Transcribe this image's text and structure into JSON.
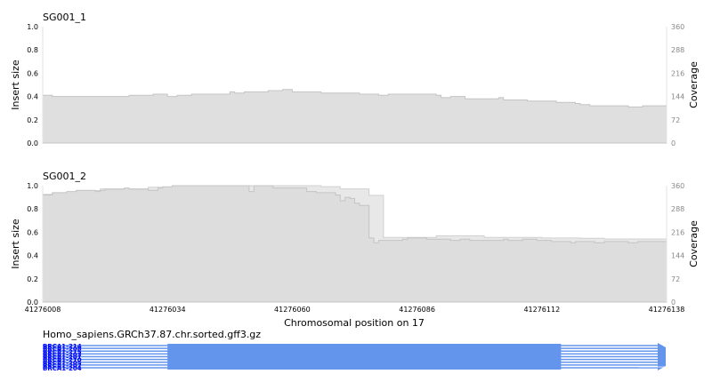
{
  "chart_data": [
    {
      "type": "area",
      "title": "SG001_1",
      "ylabel": "Insert size",
      "ylabel_right": "Coverage",
      "ylim": [
        0,
        1.0
      ],
      "y_ticks": [
        "0.0",
        "0.2",
        "0.4",
        "0.6",
        "0.8",
        "1.0"
      ],
      "y2lim": [
        0,
        360
      ],
      "y2_ticks": [
        "0",
        "72",
        "144",
        "216",
        "288",
        "360"
      ],
      "xlim": [
        41276008,
        41276138
      ],
      "series": [
        {
          "role": "insert-size",
          "x": [
            41276008,
            41276010,
            41276013,
            41276026,
            41276031,
            41276034,
            41276036,
            41276039,
            41276041,
            41276047,
            41276048,
            41276050,
            41276052,
            41276055,
            41276058,
            41276060,
            41276066,
            41276074,
            41276076,
            41276078,
            41276080,
            41276084,
            41276090,
            41276091,
            41276093,
            41276096,
            41276099,
            41276103,
            41276104,
            41276109,
            41276115,
            41276119,
            41276120,
            41276122,
            41276130,
            41276133,
            41276135,
            41276138
          ],
          "y": [
            0.41,
            0.4,
            0.4,
            0.41,
            0.42,
            0.4,
            0.41,
            0.42,
            0.42,
            0.44,
            0.43,
            0.44,
            0.44,
            0.45,
            0.46,
            0.44,
            0.43,
            0.42,
            0.42,
            0.41,
            0.42,
            0.42,
            0.41,
            0.39,
            0.4,
            0.38,
            0.38,
            0.39,
            0.37,
            0.36,
            0.35,
            0.34,
            0.33,
            0.32,
            0.31,
            0.32,
            0.32,
            0.32
          ]
        },
        {
          "role": "coverage",
          "x": [
            41276008,
            41276138
          ],
          "y": [
            0,
            0
          ]
        }
      ]
    },
    {
      "type": "area",
      "title": "SG001_2",
      "ylabel": "Insert size",
      "ylabel_right": "Coverage",
      "xlabel": "Chromosomal position on 17",
      "ylim": [
        0,
        1.0
      ],
      "y_ticks": [
        "0.0",
        "0.2",
        "0.4",
        "0.6",
        "0.8",
        "1.0"
      ],
      "y2lim": [
        0,
        360
      ],
      "y2_ticks": [
        "0",
        "72",
        "144",
        "216",
        "288",
        "360"
      ],
      "xlim": [
        41276008,
        41276138
      ],
      "x_ticks": [
        41276008,
        41276034,
        41276060,
        41276086,
        41276112,
        41276138
      ],
      "series": [
        {
          "role": "insert-size",
          "x": [
            41276008,
            41276010,
            41276013,
            41276015,
            41276019,
            41276020,
            41276021,
            41276025,
            41276026,
            41276028,
            41276030,
            41276032,
            41276033,
            41276035,
            41276036,
            41276038,
            41276040,
            41276041,
            41276043,
            41276050,
            41276051,
            41276052,
            41276056,
            41276063,
            41276065,
            41276069,
            41276070,
            41276071,
            41276072,
            41276073,
            41276074,
            41276076,
            41276077,
            41276078,
            41276080,
            41276083,
            41276084,
            41276086,
            41276088,
            41276090,
            41276093,
            41276095,
            41276097,
            41276100,
            41276104,
            41276105,
            41276108,
            41276111,
            41276114,
            41276117,
            41276118,
            41276119,
            41276121,
            41276123,
            41276125,
            41276126,
            41276130,
            41276132,
            41276138
          ],
          "y": [
            0.92,
            0.94,
            0.95,
            0.96,
            0.95,
            0.96,
            0.97,
            0.98,
            0.97,
            0.97,
            0.96,
            0.98,
            0.99,
            1.0,
            1.0,
            1.0,
            1.0,
            1.0,
            1.0,
            1.0,
            0.95,
            1.0,
            0.98,
            0.95,
            0.94,
            0.92,
            0.87,
            0.9,
            0.89,
            0.85,
            0.83,
            0.55,
            0.51,
            0.53,
            0.53,
            0.54,
            0.55,
            0.55,
            0.54,
            0.54,
            0.53,
            0.54,
            0.53,
            0.53,
            0.54,
            0.53,
            0.54,
            0.53,
            0.52,
            0.52,
            0.51,
            0.52,
            0.52,
            0.51,
            0.52,
            0.52,
            0.51,
            0.52,
            0.52
          ]
        },
        {
          "role": "coverage",
          "x": [
            41276008,
            41276010,
            41276015,
            41276020,
            41276030,
            41276043,
            41276050,
            41276060,
            41276066,
            41276070,
            41276076,
            41276079,
            41276090,
            41276100,
            41276112,
            41276120,
            41276125,
            41276138
          ],
          "y": [
            333,
            335,
            345,
            350,
            355,
            360,
            360,
            360,
            357,
            350,
            330,
            200,
            205,
            200,
            198,
            197,
            195,
            192
          ]
        }
      ]
    }
  ],
  "annotation_track": {
    "title": "Homo_sapiens.GRCh37.87.chr.sorted.gff3.gz",
    "labels": [
      "BRCA1-214",
      "BRCA1-208",
      "BRCA1-215",
      "BRCA1-203",
      "BRCA1-201",
      "BRCA1-210",
      "BRCA1-205",
      "BRCA1-202",
      "BRCA1-204"
    ],
    "exon_start": 41276034,
    "exon_end": 41276116,
    "color": "#6495ed"
  },
  "colors": {
    "insert_fill": "#dcdcdc",
    "insert_line": "#c4c4c4",
    "coverage_fill": "#e8e8e8",
    "coverage_line": "#d0d0d0",
    "exon": "#6495ed",
    "label": "#0000ff",
    "axis_tick_right": "#888888"
  }
}
